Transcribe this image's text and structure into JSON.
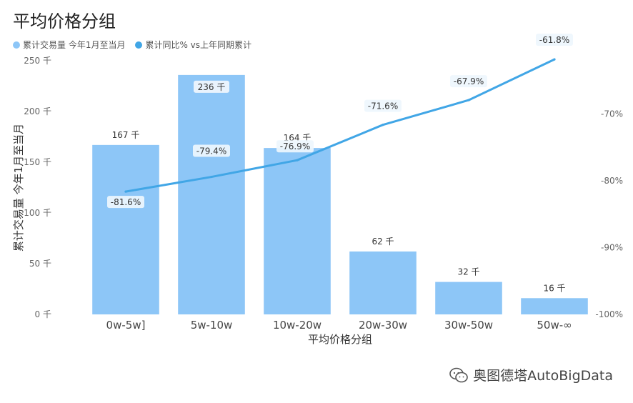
{
  "chart_data": {
    "type": "bar+line",
    "title": "平均价格分组",
    "xlabel": "平均价格分组",
    "ylabel": "累计交易量 今年1月至当月",
    "categories": [
      "0w-5w]",
      "5w-10w",
      "10w-20w",
      "20w-30w",
      "30w-50w",
      "50w-∞"
    ],
    "series": [
      {
        "name": "累计交易量 今年1月至当月",
        "type": "bar",
        "axis": "left",
        "values": [
          167,
          236,
          164,
          62,
          32,
          16
        ],
        "labels": [
          "167 千",
          "236 千",
          "164 千",
          "62 千",
          "32 千",
          "16 千"
        ],
        "color": "#8dc6f7"
      },
      {
        "name": "累计同比% vs上年同期累计",
        "type": "line",
        "axis": "right",
        "values": [
          -81.6,
          -79.4,
          -76.9,
          -71.6,
          -67.9,
          -61.8
        ],
        "labels": [
          "-81.6%",
          "-79.4%",
          "-76.9%",
          "-71.6%",
          "-67.9%",
          "-61.8%"
        ],
        "color": "#41a6e6"
      }
    ],
    "ylim": [
      0,
      250
    ],
    "yticks": [
      0,
      50,
      100,
      150,
      200,
      250
    ],
    "ytick_labels": [
      "0 千",
      "50 千",
      "100 千",
      "150 千",
      "200 千",
      "250 千"
    ],
    "y2lim": [
      -100,
      -62
    ],
    "y2ticks": [
      -100,
      -90,
      -80,
      -70
    ],
    "y2tick_labels": [
      "-100%",
      "-90%",
      "-80%",
      "-70%"
    ],
    "legend_position": "top-left",
    "grid": false
  },
  "watermark": {
    "text": "奥图德塔AutoBigData",
    "icon": "wechat-icon"
  }
}
